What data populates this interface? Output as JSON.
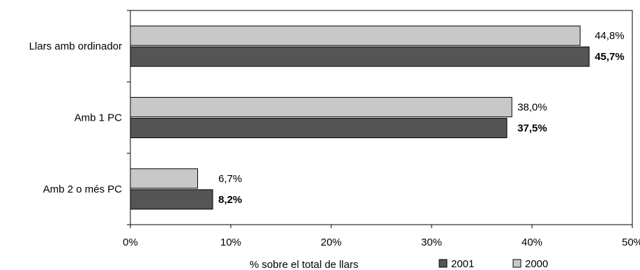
{
  "chart_data": {
    "type": "bar",
    "orientation": "horizontal",
    "categories": [
      "Llars amb ordinador",
      "Amb 1 PC",
      "Amb 2 o més PC"
    ],
    "series": [
      {
        "name": "2000",
        "color": "#c8c8c8",
        "values": [
          44.8,
          38.0,
          6.7
        ],
        "labels": [
          "44,8%",
          "38,0%",
          "6,7%"
        ],
        "label_bold": false
      },
      {
        "name": "2001",
        "color": "#555555",
        "values": [
          45.7,
          37.5,
          8.2
        ],
        "labels": [
          "45,7%",
          "37,5%",
          "8,2%"
        ],
        "label_bold": true
      }
    ],
    "xlim": [
      0,
      50
    ],
    "x_ticks": [
      0,
      10,
      20,
      30,
      40,
      50
    ],
    "x_tick_labels": [
      "0%",
      "10%",
      "20%",
      "30%",
      "40%",
      "50%"
    ],
    "xlabel": "% sobre el total de llars",
    "ylabel": "",
    "title": "",
    "legend": {
      "placement": "bottom-right",
      "order": [
        "2001",
        "2000"
      ]
    },
    "grid": false
  }
}
